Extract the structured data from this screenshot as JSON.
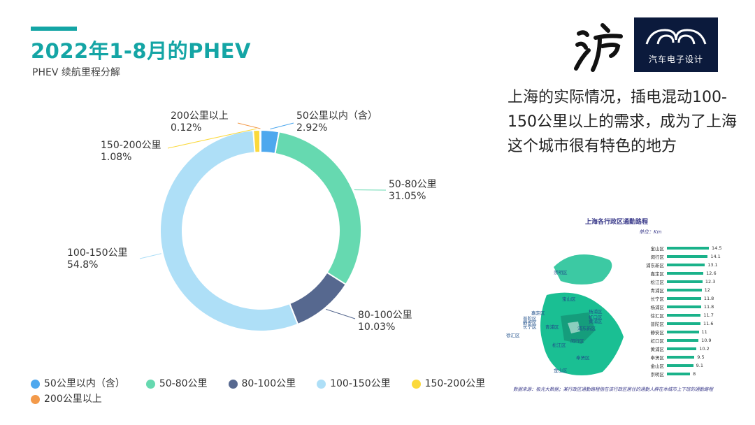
{
  "header": {
    "title": "2022年1-8月的PHEV",
    "subtitle": "PHEV 续航里程分解"
  },
  "logo": {
    "text": "汽车电子设计"
  },
  "seal": {
    "text": "沪"
  },
  "description": "上海的实际情况，插电混动100-150公里以上的需求，成为了上海这个城市很有特色的地方",
  "chart_data": {
    "type": "pie",
    "donut": true,
    "categories": [
      "50公里以内（含）",
      "50-80公里",
      "80-100公里",
      "100-150公里",
      "150-200公里",
      "200公里以上"
    ],
    "values": [
      2.92,
      31.05,
      10.03,
      54.8,
      1.08,
      0.12
    ],
    "value_labels": [
      "2.92%",
      "31.05%",
      "10.03%",
      "54.8%",
      "1.08%",
      "0.12%"
    ],
    "colors": [
      "#4ea8ee",
      "#66d9b0",
      "#56688f",
      "#aedff7",
      "#fbd93b",
      "#f39a4a"
    ],
    "legend": "bottom"
  },
  "map": {
    "title": "上海各行政区通勤路程",
    "unit": "单位：Km",
    "note": "数据来源：极光大数据；某行政区通勤路程指在该行政区居住的通勤人群在本城市上下班的通勤路程",
    "districts": [
      {
        "name": "宝山区",
        "value": 14.5
      },
      {
        "name": "闵行区",
        "value": 14.1
      },
      {
        "name": "浦东新区",
        "value": 13.1
      },
      {
        "name": "嘉定区",
        "value": 12.6
      },
      {
        "name": "松江区",
        "value": 12.3
      },
      {
        "name": "青浦区",
        "value": 12.0
      },
      {
        "name": "长宁区",
        "value": 11.8
      },
      {
        "name": "杨浦区",
        "value": 11.8
      },
      {
        "name": "徐汇区",
        "value": 11.7
      },
      {
        "name": "普陀区",
        "value": 11.6
      },
      {
        "name": "静安区",
        "value": 11.0
      },
      {
        "name": "虹口区",
        "value": 10.9
      },
      {
        "name": "黄浦区",
        "value": 10.2
      },
      {
        "name": "奉贤区",
        "value": 9.5
      },
      {
        "name": "金山区",
        "value": 9.1
      },
      {
        "name": "崇明区",
        "value": 8.0
      }
    ],
    "map_labels": [
      "崇明区",
      "宝山区",
      "嘉定区",
      "普陀区",
      "静安区",
      "长宁区",
      "徐汇区",
      "杨浦区",
      "虹口区",
      "黄浦区",
      "青浦区",
      "浦东新区",
      "闵行区",
      "松江区",
      "奉贤区",
      "金山区"
    ]
  }
}
